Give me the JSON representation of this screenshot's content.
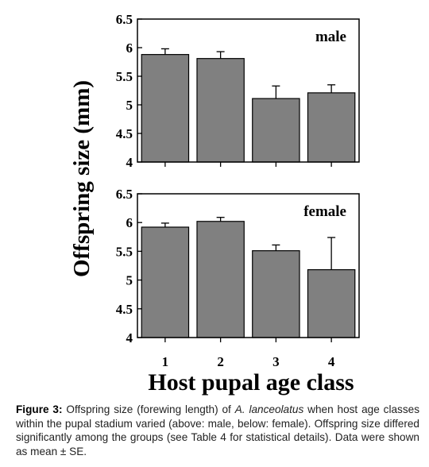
{
  "chart_data": [
    {
      "type": "bar",
      "panel_label": "male",
      "categories": [
        "1",
        "2",
        "3",
        "4"
      ],
      "values": [
        5.88,
        5.81,
        5.11,
        5.21
      ],
      "errors": [
        0.1,
        0.12,
        0.22,
        0.14
      ],
      "ylim": [
        4,
        6.5
      ],
      "yticks": [
        4,
        4.5,
        5,
        5.5,
        6,
        6.5
      ],
      "ytick_labels": [
        "4",
        "4.5",
        "5",
        "5.5",
        "6",
        "6.5"
      ],
      "bar_color": "#808080",
      "xtick_labels_shown": false
    },
    {
      "type": "bar",
      "panel_label": "female",
      "categories": [
        "1",
        "2",
        "3",
        "4"
      ],
      "values": [
        5.92,
        6.02,
        5.51,
        5.18
      ],
      "errors": [
        0.07,
        0.07,
        0.1,
        0.56
      ],
      "ylim": [
        4,
        6.5
      ],
      "yticks": [
        4,
        4.5,
        5,
        5.5,
        6,
        6.5
      ],
      "ytick_labels": [
        "4",
        "4.5",
        "5",
        "5.5",
        "6",
        "6.5"
      ],
      "bar_color": "#808080",
      "xtick_labels_shown": true
    }
  ],
  "ylabel": "Offspring size (mm)",
  "xlabel": "Host pupal age class",
  "caption": {
    "label": "Figure 3:",
    "text_before": " Offspring size (forewing length) of ",
    "species": "A. lanceolatus",
    "text_after": " when host age classes within the pupal stadium varied (above: male, below: female). Offspring size differed significantly among the groups (see Table 4 for statistical details). Data were shown as mean ± SE."
  }
}
